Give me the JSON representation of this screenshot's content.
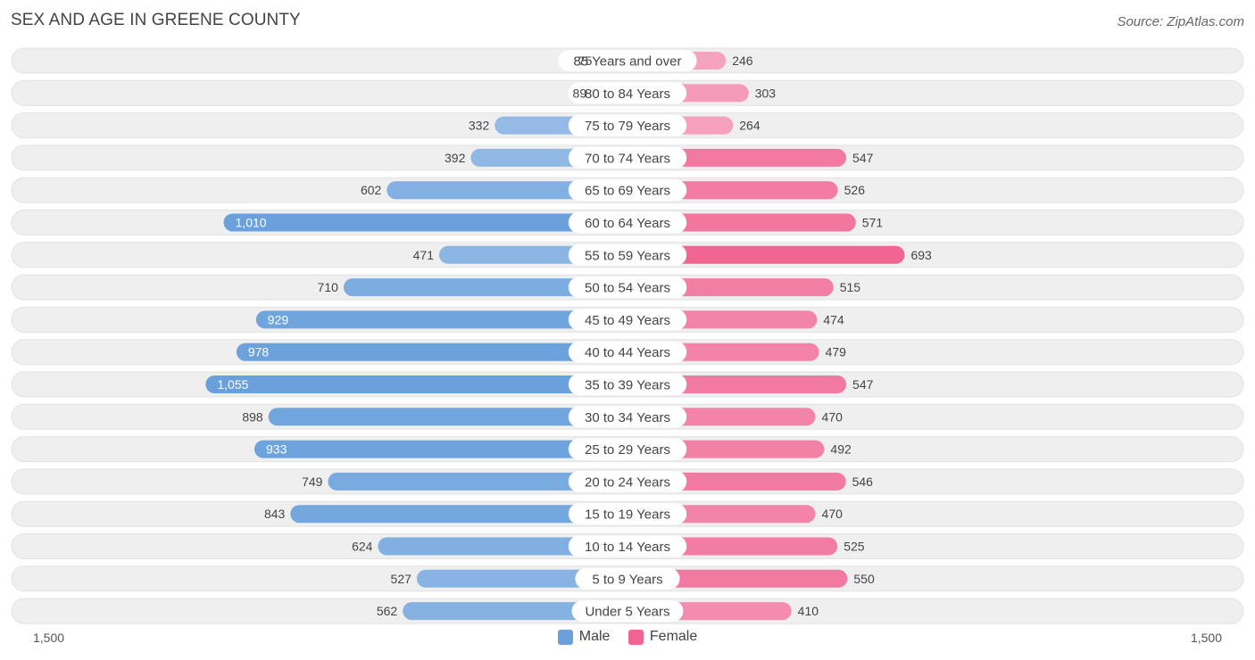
{
  "title": "SEX AND AGE IN GREENE COUNTY",
  "source": "Source: ZipAtlas.com",
  "colors": {
    "male_light": "#a9c7ea",
    "male_dark": "#6aa1dc",
    "female_light": "#f6a8c3",
    "female_dark": "#f06592",
    "row_bg": "#efefef"
  },
  "legend": {
    "male": "Male",
    "female": "Female"
  },
  "axis": {
    "left_label": "1,500",
    "right_label": "1,500"
  },
  "chart_data": {
    "type": "bar",
    "orientation": "horizontal-diverging",
    "xlim": [
      -1500,
      1500
    ],
    "categories": [
      "85 Years and over",
      "80 to 84 Years",
      "75 to 79 Years",
      "70 to 74 Years",
      "65 to 69 Years",
      "60 to 64 Years",
      "55 to 59 Years",
      "50 to 54 Years",
      "45 to 49 Years",
      "40 to 44 Years",
      "35 to 39 Years",
      "30 to 34 Years",
      "25 to 29 Years",
      "20 to 24 Years",
      "15 to 19 Years",
      "10 to 14 Years",
      "5 to 9 Years",
      "Under 5 Years"
    ],
    "series": [
      {
        "name": "Male",
        "values": [
          75,
          89,
          332,
          392,
          602,
          1010,
          471,
          710,
          929,
          978,
          1055,
          898,
          933,
          749,
          843,
          624,
          527,
          562
        ],
        "labels": [
          "75",
          "89",
          "332",
          "392",
          "602",
          "1,010",
          "471",
          "710",
          "929",
          "978",
          "1,055",
          "898",
          "933",
          "749",
          "843",
          "624",
          "527",
          "562"
        ]
      },
      {
        "name": "Female",
        "values": [
          246,
          303,
          264,
          547,
          526,
          571,
          693,
          515,
          474,
          479,
          547,
          470,
          492,
          546,
          470,
          525,
          550,
          410
        ],
        "labels": [
          "246",
          "303",
          "264",
          "547",
          "526",
          "571",
          "693",
          "515",
          "474",
          "479",
          "547",
          "470",
          "492",
          "546",
          "470",
          "525",
          "550",
          "410"
        ]
      }
    ]
  }
}
